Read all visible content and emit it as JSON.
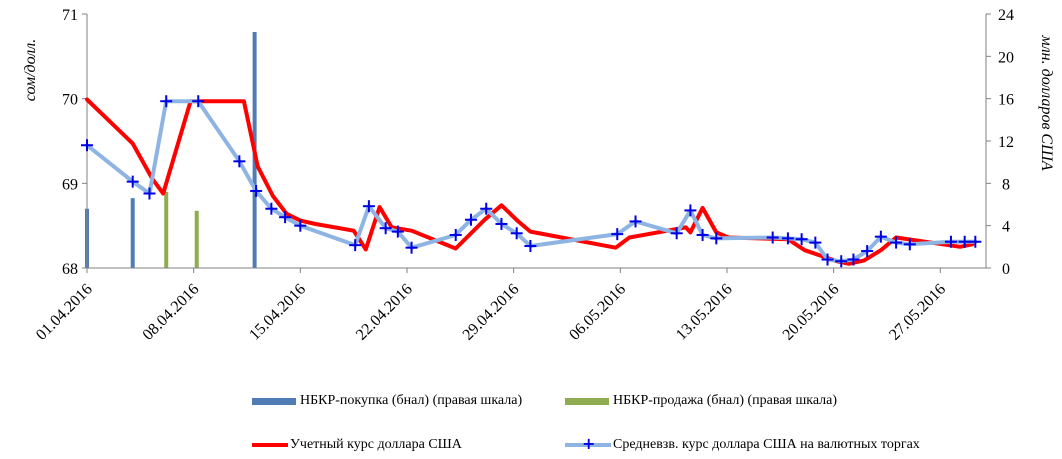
{
  "chart_data": {
    "type": "line",
    "y_left": {
      "label": "сом/долл.",
      "min": 68,
      "max": 71,
      "ticks": [
        "68",
        "69",
        "70",
        "71"
      ]
    },
    "y_right": {
      "label": "млн. долларов США",
      "min": 0,
      "max": 24,
      "ticks": [
        "0",
        "4",
        "8",
        "12",
        "16",
        "20",
        "24"
      ]
    },
    "x_ticks": [
      "01.04.2016",
      "08.04.2016",
      "15.04.2016",
      "22.04.2016",
      "29.04.2016",
      "06.05.2016",
      "13.05.2016",
      "20.05.2016",
      "27.05.2016"
    ],
    "series": [
      {
        "name": "НБКР-покупка (бнал) (правая шкала)",
        "kind": "bar",
        "axis": "right",
        "color": "#4f7cb5",
        "points": [
          [
            1,
            5.6
          ],
          [
            4,
            6.6
          ],
          [
            12,
            22.3
          ]
        ]
      },
      {
        "name": "НБКР-продажа (бнал) (правая шкала)",
        "kind": "bar",
        "axis": "right",
        "color": "#8fac50",
        "points": [
          [
            6.2,
            7.2
          ],
          [
            8.2,
            5.4
          ]
        ]
      },
      {
        "name": "Учетный курс доллара США",
        "kind": "line",
        "axis": "left",
        "color": "#ff0000",
        "points": [
          [
            1,
            69.99
          ],
          [
            4,
            69.47
          ],
          [
            5.3,
            69.05
          ],
          [
            6,
            68.88
          ],
          [
            7.8,
            69.97
          ],
          [
            10,
            69.97
          ],
          [
            11.3,
            69.97
          ],
          [
            12.2,
            69.2
          ],
          [
            13.2,
            68.85
          ],
          [
            14.1,
            68.64
          ],
          [
            15,
            68.56
          ],
          [
            16,
            68.52
          ],
          [
            18.5,
            68.44
          ],
          [
            19.3,
            68.22
          ],
          [
            20.2,
            68.72
          ],
          [
            21,
            68.48
          ],
          [
            22.3,
            68.44
          ],
          [
            25.2,
            68.23
          ],
          [
            27.1,
            68.57
          ],
          [
            28.2,
            68.74
          ],
          [
            29.3,
            68.55
          ],
          [
            30.1,
            68.43
          ],
          [
            35.7,
            68.24
          ],
          [
            36.6,
            68.36
          ],
          [
            40.3,
            68.48
          ],
          [
            40.6,
            68.42
          ],
          [
            41.4,
            68.71
          ],
          [
            42.3,
            68.42
          ],
          [
            43.1,
            68.36
          ],
          [
            47,
            68.34
          ],
          [
            48.1,
            68.21
          ],
          [
            50.2,
            68.08
          ],
          [
            51,
            68.05
          ],
          [
            52,
            68.09
          ],
          [
            53.1,
            68.21
          ],
          [
            54.1,
            68.36
          ],
          [
            58.3,
            68.25
          ],
          [
            59.1,
            68.28
          ]
        ]
      },
      {
        "name": "Средневзв. курс доллара США на валютных торгах",
        "kind": "line_markers",
        "axis": "left",
        "color": "#8db4e2",
        "points": [
          [
            1,
            69.45
          ],
          [
            4,
            69.02
          ],
          [
            5.1,
            68.88
          ],
          [
            6.2,
            69.97
          ],
          [
            8.3,
            69.97
          ],
          [
            11,
            69.26
          ],
          [
            12.1,
            68.91
          ],
          [
            13.1,
            68.7
          ],
          [
            14,
            68.6
          ],
          [
            15,
            68.5
          ],
          [
            18.6,
            68.27
          ],
          [
            19.5,
            68.73
          ],
          [
            20.6,
            68.47
          ],
          [
            21.4,
            68.43
          ],
          [
            22.3,
            68.24
          ],
          [
            25.2,
            68.39
          ],
          [
            26.2,
            68.57
          ],
          [
            27.2,
            68.7
          ],
          [
            28.2,
            68.52
          ],
          [
            29.2,
            68.41
          ],
          [
            30.1,
            68.26
          ],
          [
            35.8,
            68.4
          ],
          [
            37,
            68.55
          ],
          [
            39.7,
            68.41
          ],
          [
            40.6,
            68.68
          ],
          [
            41.4,
            68.39
          ],
          [
            42.3,
            68.35
          ],
          [
            46,
            68.36
          ],
          [
            47,
            68.35
          ],
          [
            47.9,
            68.34
          ],
          [
            48.8,
            68.3
          ],
          [
            49.6,
            68.1
          ],
          [
            50.5,
            68.08
          ],
          [
            51.3,
            68.1
          ],
          [
            52.2,
            68.2
          ],
          [
            53.1,
            68.37
          ],
          [
            54.1,
            68.3
          ],
          [
            55,
            68.28
          ],
          [
            57.7,
            68.31
          ],
          [
            58.6,
            68.31
          ],
          [
            59.3,
            68.31
          ]
        ]
      }
    ],
    "legend_position": "bottom",
    "grid": false
  }
}
